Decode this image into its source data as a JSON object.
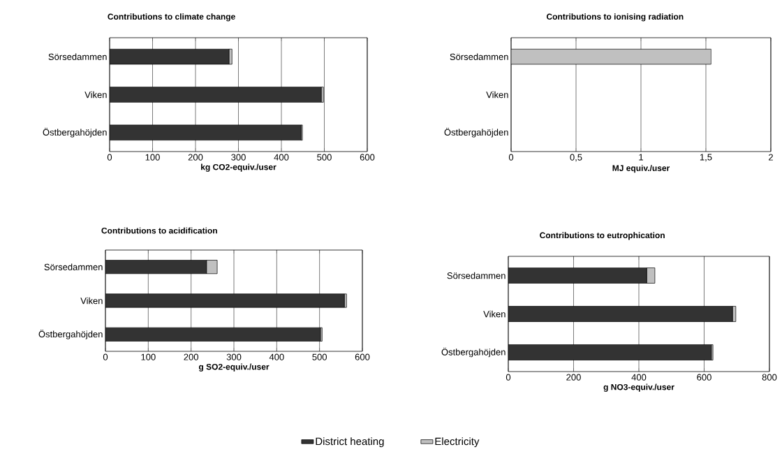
{
  "chart_data": [
    {
      "type": "bar",
      "orientation": "horizontal",
      "stacked": true,
      "title": "Contributions to climate change",
      "xlabel": "kg CO2-equiv./user",
      "categories": [
        "Sörsedammen",
        "Viken",
        "Östbergahöjden"
      ],
      "series": [
        {
          "color": "#333333",
          "values": [
            278,
            493,
            446
          ]
        },
        {
          "color": "#c0c0c0",
          "values": [
            7,
            5,
            3
          ]
        }
      ],
      "xlim": [
        0,
        600
      ],
      "xticks": [
        0,
        100,
        200,
        300,
        400,
        500,
        600
      ],
      "grid": "x"
    },
    {
      "type": "bar",
      "orientation": "horizontal",
      "stacked": true,
      "title": "Contributions to ionising radiation",
      "xlabel": "MJ equiv./user",
      "categories": [
        "Sörsedammen",
        "Viken",
        "Östbergahöjden"
      ],
      "series": [
        {
          "color": "#333333",
          "values": [
            0,
            0,
            0
          ]
        },
        {
          "color": "#c0c0c0",
          "values": [
            1.54,
            0,
            0
          ]
        }
      ],
      "xlim": [
        0,
        2
      ],
      "xticks": [
        0,
        {
          "value": 0.5,
          "label": "0,5"
        },
        1,
        {
          "value": 1.5,
          "label": "1,5"
        },
        2
      ],
      "grid": "x"
    },
    {
      "type": "bar",
      "orientation": "horizontal",
      "stacked": true,
      "title": "Contributions to acidification",
      "xlabel": "g SO2-equiv./user",
      "categories": [
        "Sörsedammen",
        "Viken",
        "Östbergahöjden"
      ],
      "series": [
        {
          "color": "#333333",
          "values": [
            236,
            558,
            502
          ]
        },
        {
          "color": "#c0c0c0",
          "values": [
            25,
            5,
            4
          ]
        }
      ],
      "xlim": [
        0,
        600
      ],
      "xticks": [
        0,
        100,
        200,
        300,
        400,
        500,
        600
      ],
      "grid": "x"
    },
    {
      "type": "bar",
      "orientation": "horizontal",
      "stacked": true,
      "title": "Contributions to eutrophication",
      "xlabel": "g NO3-equiv./user",
      "categories": [
        "Sörsedammen",
        "Viken",
        "Östbergahöjden"
      ],
      "series": [
        {
          "name": "District heating",
          "color": "#333333",
          "values": [
            424,
            687,
            622
          ]
        },
        {
          "name": "Electricity",
          "color": "#c0c0c0",
          "values": [
            25,
            10,
            5
          ]
        }
      ],
      "xlim": [
        0,
        800
      ],
      "xticks": [
        0,
        200,
        400,
        600,
        800
      ],
      "grid": "x",
      "legend": "bottom"
    }
  ]
}
